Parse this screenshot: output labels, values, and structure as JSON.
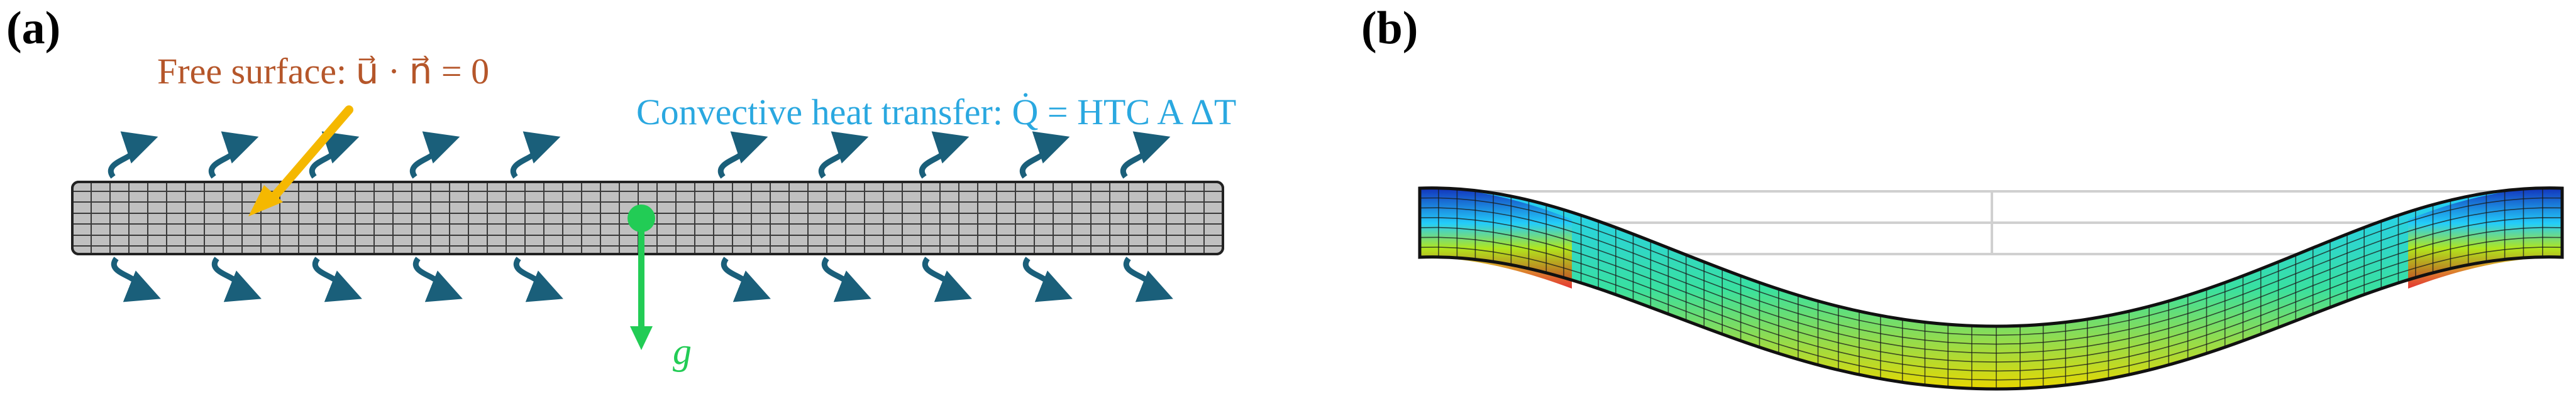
{
  "panel_a": {
    "label": "(a)",
    "free_surface_text": "Free surface: u⃗ · n⃗ = 0",
    "convective_text": "Convective heat transfer: Q̇ = HTC A ΔT",
    "gravity_text": "g⃗"
  },
  "panel_b": {
    "label": "(b)"
  },
  "colors": {
    "free_surface": "#b5562a",
    "convective": "#2aa8e0",
    "gravity": "#22cc55",
    "arrow_orange": "#f5b800",
    "flux_arrow": "#1a5f7a",
    "bar_fill": "#c0c0c0",
    "mesh_line": "#3a3a3a"
  }
}
